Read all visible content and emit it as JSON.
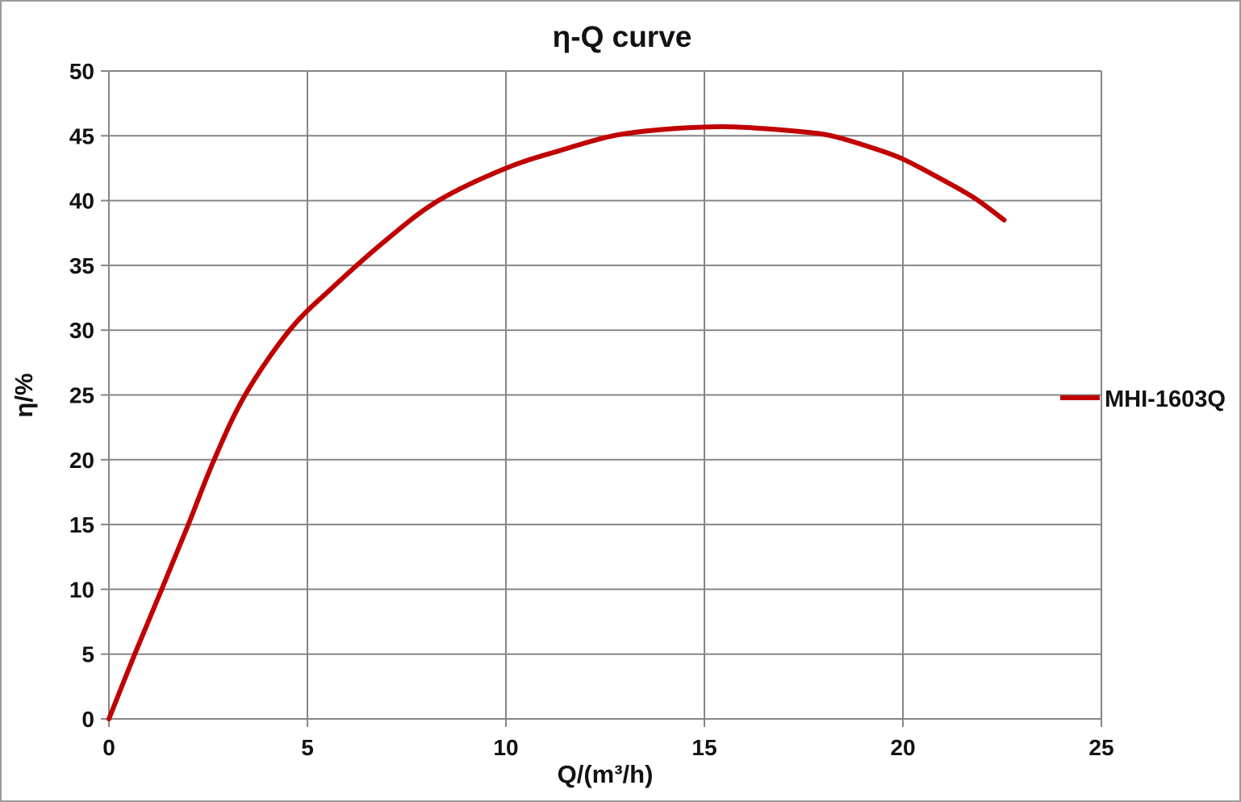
{
  "chart_data": {
    "type": "line",
    "title": "η-Q  curve",
    "xlabel": "Q/(m³/h)",
    "ylabel": "η/%",
    "xlim": [
      0,
      25
    ],
    "ylim": [
      0,
      50
    ],
    "x_ticks": [
      0,
      5,
      10,
      15,
      20,
      25
    ],
    "y_ticks": [
      0,
      5,
      10,
      15,
      20,
      25,
      30,
      35,
      40,
      45,
      50
    ],
    "grid": true,
    "grid_color": "#868686",
    "text_color": "#121216",
    "background": "#ffffff",
    "legend_position": "right-middle",
    "series": [
      {
        "name": "MHI-1603Q",
        "color": "#C00000",
        "line_width": 6,
        "points": [
          [
            0,
            0
          ],
          [
            0.65,
            5
          ],
          [
            1.33,
            10
          ],
          [
            2.0,
            15
          ],
          [
            2.65,
            20
          ],
          [
            3.43,
            25
          ],
          [
            4.55,
            30
          ],
          [
            5.6,
            33.2
          ],
          [
            7.0,
            37.0
          ],
          [
            8.3,
            40.0
          ],
          [
            10.0,
            42.5
          ],
          [
            11.4,
            43.9
          ],
          [
            12.7,
            45.0
          ],
          [
            14.0,
            45.5
          ],
          [
            15.3,
            45.7
          ],
          [
            16.3,
            45.6
          ],
          [
            17.5,
            45.3
          ],
          [
            18.2,
            45.0
          ],
          [
            19.2,
            44.1
          ],
          [
            20.0,
            43.2
          ],
          [
            21.0,
            41.6
          ],
          [
            21.8,
            40.2
          ],
          [
            22.55,
            38.5
          ]
        ]
      }
    ]
  }
}
